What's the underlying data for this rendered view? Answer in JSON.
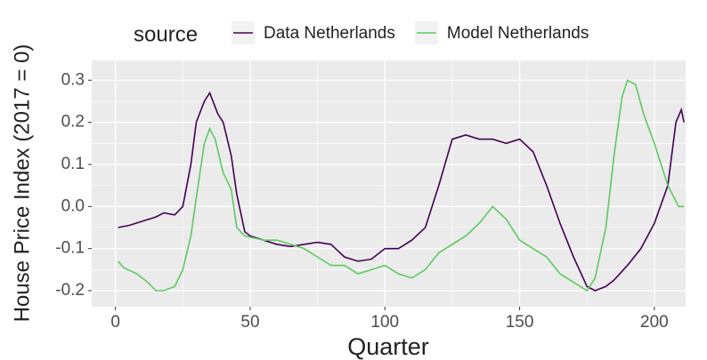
{
  "chart_data": {
    "type": "line",
    "x_label": "Quarter",
    "y_label": "House Price Index (2017 = 0)",
    "legend_title": "source",
    "legend_position": "top",
    "grid": true,
    "xlim": [
      -8.8,
      211.6
    ],
    "ylim": [
      -0.238,
      0.347
    ],
    "xticks": [
      0,
      50,
      100,
      150,
      200
    ],
    "yticks": [
      -0.2,
      -0.1,
      {
        "value": 0,
        "label": "0.0"
      },
      0.1,
      0.2,
      0.3
    ],
    "series": [
      {
        "name": "Data Netherlands",
        "color": "#440154",
        "x": [
          1,
          5,
          10,
          15,
          18,
          22,
          25,
          28,
          30,
          33,
          35,
          38,
          40,
          43,
          45,
          48,
          50,
          55,
          60,
          65,
          70,
          75,
          80,
          85,
          90,
          95,
          100,
          105,
          110,
          115,
          120,
          125,
          130,
          135,
          140,
          145,
          150,
          155,
          160,
          165,
          170,
          175,
          178,
          182,
          185,
          190,
          195,
          200,
          205,
          208,
          210,
          211
        ],
        "values": [
          -0.05,
          -0.045,
          -0.035,
          -0.025,
          -0.015,
          -0.02,
          0.0,
          0.1,
          0.2,
          0.25,
          0.27,
          0.22,
          0.2,
          0.12,
          0.03,
          -0.06,
          -0.07,
          -0.08,
          -0.09,
          -0.095,
          -0.09,
          -0.085,
          -0.09,
          -0.12,
          -0.13,
          -0.125,
          -0.1,
          -0.1,
          -0.08,
          -0.05,
          0.05,
          0.16,
          0.17,
          0.16,
          0.16,
          0.15,
          0.16,
          0.13,
          0.05,
          -0.04,
          -0.12,
          -0.19,
          -0.2,
          -0.19,
          -0.175,
          -0.14,
          -0.1,
          -0.04,
          0.05,
          0.2,
          0.23,
          0.2
        ]
      },
      {
        "name": "Model Netherlands",
        "color": "#5ec962",
        "x": [
          1,
          3,
          8,
          12,
          15,
          18,
          22,
          25,
          28,
          30,
          33,
          35,
          37,
          40,
          43,
          45,
          48,
          55,
          60,
          65,
          70,
          75,
          80,
          85,
          90,
          95,
          100,
          105,
          110,
          115,
          120,
          125,
          130,
          135,
          140,
          145,
          150,
          155,
          160,
          165,
          170,
          175,
          178,
          182,
          185,
          188,
          190,
          193,
          196,
          200,
          205,
          209,
          211
        ],
        "values": [
          -0.13,
          -0.145,
          -0.16,
          -0.18,
          -0.2,
          -0.2,
          -0.19,
          -0.15,
          -0.07,
          0.02,
          0.15,
          0.185,
          0.16,
          0.08,
          0.04,
          -0.05,
          -0.07,
          -0.08,
          -0.08,
          -0.09,
          -0.1,
          -0.12,
          -0.14,
          -0.14,
          -0.16,
          -0.15,
          -0.14,
          -0.16,
          -0.17,
          -0.15,
          -0.11,
          -0.09,
          -0.07,
          -0.04,
          0.0,
          -0.03,
          -0.08,
          -0.1,
          -0.12,
          -0.16,
          -0.18,
          -0.2,
          -0.17,
          -0.05,
          0.12,
          0.26,
          0.3,
          0.29,
          0.22,
          0.15,
          0.05,
          0.0,
          0.0
        ]
      }
    ]
  }
}
